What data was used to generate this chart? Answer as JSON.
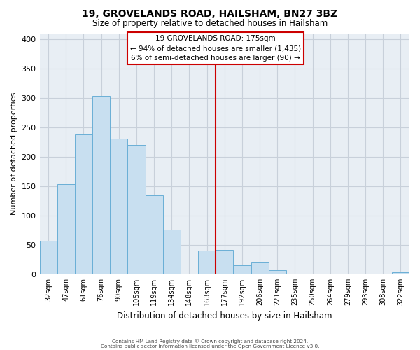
{
  "title": "19, GROVELANDS ROAD, HAILSHAM, BN27 3BZ",
  "subtitle": "Size of property relative to detached houses in Hailsham",
  "xlabel": "Distribution of detached houses by size in Hailsham",
  "ylabel": "Number of detached properties",
  "bar_labels": [
    "32sqm",
    "47sqm",
    "61sqm",
    "76sqm",
    "90sqm",
    "105sqm",
    "119sqm",
    "134sqm",
    "148sqm",
    "163sqm",
    "177sqm",
    "192sqm",
    "206sqm",
    "221sqm",
    "235sqm",
    "250sqm",
    "264sqm",
    "279sqm",
    "293sqm",
    "308sqm",
    "322sqm"
  ],
  "bar_heights": [
    57,
    154,
    238,
    303,
    231,
    220,
    135,
    76,
    0,
    40,
    42,
    15,
    20,
    7,
    0,
    0,
    0,
    0,
    0,
    0,
    3
  ],
  "bar_color": "#c8dff0",
  "bar_edge_color": "#6aafd6",
  "vline_x_index": 10,
  "vline_color": "#cc0000",
  "annotation_title": "19 GROVELANDS ROAD: 175sqm",
  "annotation_line1": "← 94% of detached houses are smaller (1,435)",
  "annotation_line2": "6% of semi-detached houses are larger (90) →",
  "annotation_box_color": "#ffffff",
  "annotation_box_edge": "#cc0000",
  "ylim": [
    0,
    410
  ],
  "yticks": [
    0,
    50,
    100,
    150,
    200,
    250,
    300,
    350,
    400
  ],
  "footer1": "Contains HM Land Registry data © Crown copyright and database right 2024.",
  "footer2": "Contains public sector information licensed under the Open Government Licence v3.0.",
  "background_color": "#ffffff",
  "plot_bg_color": "#e8eef4",
  "grid_color": "#c8d0da"
}
